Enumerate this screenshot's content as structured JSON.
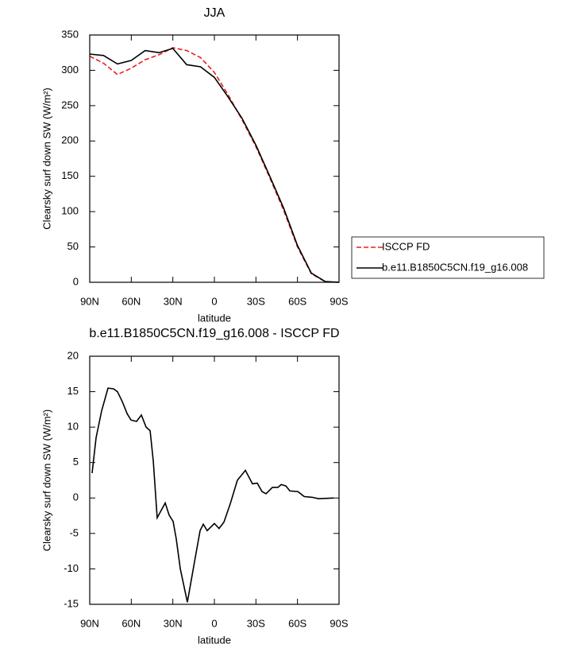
{
  "chart_data": [
    {
      "type": "line",
      "title": "JJA",
      "xlabel": "latitude",
      "ylabel": "Clearsky surf down SW (W/m²)",
      "x": [
        90,
        80,
        70,
        60,
        50,
        40,
        30,
        20,
        10,
        0,
        -10,
        -20,
        -30,
        -40,
        -50,
        -60,
        -70,
        -80,
        -90
      ],
      "series": [
        {
          "name": "ISCCP FD",
          "color": "#e8201a",
          "dashed": true,
          "values": [
            320,
            310,
            294,
            303,
            315,
            322,
            332,
            328,
            318,
            297,
            265,
            230,
            192,
            148,
            102,
            50,
            12,
            1,
            0
          ]
        },
        {
          "name": "b.e11.B1850C5CN.f19_g16.008",
          "color": "#000000",
          "dashed": false,
          "values": [
            323,
            321,
            309,
            314,
            328,
            325,
            331,
            308,
            305,
            290,
            262,
            232,
            194,
            150,
            105,
            52,
            13,
            1,
            0
          ]
        }
      ],
      "xlim": [
        90,
        -90
      ],
      "xticks": [
        {
          "value": 90,
          "label": "90N"
        },
        {
          "value": 60,
          "label": "60N"
        },
        {
          "value": 30,
          "label": "30N"
        },
        0,
        {
          "value": -30,
          "label": "30S"
        },
        {
          "value": -60,
          "label": "60S"
        },
        {
          "value": -90,
          "label": "90S"
        }
      ],
      "ylim": [
        0,
        350
      ],
      "yticks": [
        0,
        50,
        100,
        150,
        200,
        250,
        300,
        350
      ],
      "legend": "outside-right"
    },
    {
      "type": "line",
      "title": "b.e11.B1850C5CN.f19_g16.008 - ISCCP FD",
      "xlabel": "latitude",
      "ylabel": "Clearsky surf down SW (W/m²)",
      "x": [
        88.3,
        85.4,
        81.4,
        76.8,
        72.8,
        70,
        66.5,
        63,
        60.2,
        56.2,
        52.7,
        49.3,
        46.4,
        44.1,
        41.3,
        35.5,
        32.7,
        29.8,
        27.5,
        24.6,
        19.5,
        13.7,
        10.3,
        8,
        5.2,
        0,
        -3.4,
        -6.9,
        -11.5,
        -16.6,
        -22.4,
        -27.5,
        -31,
        -34.4,
        -37.3,
        -41.9,
        -45.9,
        -48.2,
        -51.6,
        -54.5,
        -60.3,
        -64.9,
        -70.6,
        -75.2,
        -86.1
      ],
      "series": [
        {
          "color": "#000000",
          "dashed": false,
          "values": [
            3.5,
            8.5,
            12.3,
            15.5,
            15.4,
            15,
            13.6,
            11.9,
            11,
            10.8,
            11.7,
            10,
            9.5,
            5.2,
            -2.8,
            -0.7,
            -2.4,
            -3.3,
            -5.8,
            -10,
            -14.7,
            -8.3,
            -4.6,
            -3.7,
            -4.6,
            -3.6,
            -4.3,
            -3.4,
            -0.8,
            2.5,
            3.9,
            2,
            2.1,
            0.9,
            0.6,
            1.5,
            1.5,
            1.9,
            1.7,
            1,
            0.9,
            0.2,
            0.1,
            -0.1,
            0
          ]
        }
      ],
      "xlim": [
        90,
        -90
      ],
      "xticks": [
        {
          "value": 90,
          "label": "90N"
        },
        {
          "value": 60,
          "label": "60N"
        },
        {
          "value": 30,
          "label": "30N"
        },
        0,
        {
          "value": -30,
          "label": "30S"
        },
        {
          "value": -60,
          "label": "60S"
        },
        {
          "value": -90,
          "label": "90S"
        }
      ],
      "ylim": [
        -15,
        20
      ],
      "yticks": [
        -15,
        -10,
        -5,
        0,
        5,
        10,
        15,
        20
      ]
    }
  ]
}
